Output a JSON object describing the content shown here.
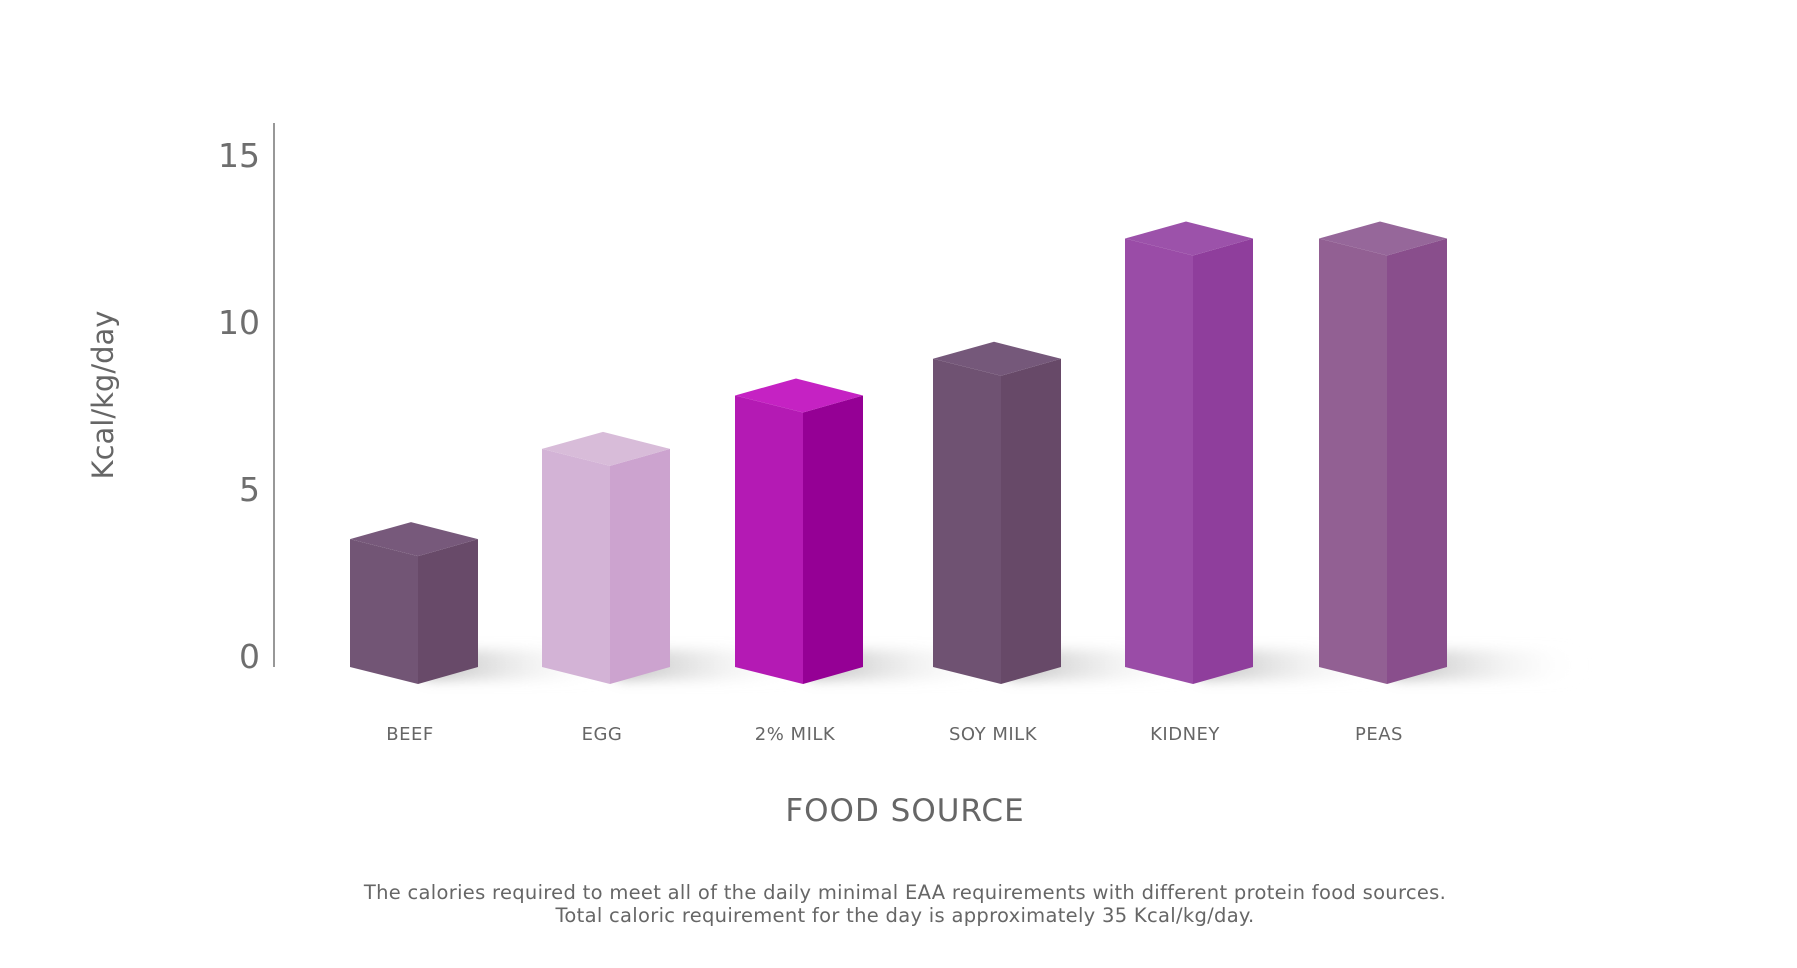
{
  "chart_data": {
    "type": "bar",
    "style": "3d-column",
    "title": "",
    "xlabel": "FOOD SOURCE",
    "ylabel": "Kcal/kg/day",
    "ylim": [
      0,
      15
    ],
    "yticks": [
      "0",
      "5",
      "10",
      "15"
    ],
    "grid": false,
    "categories": [
      "BEEF",
      "EGG",
      "2% MILK",
      "SOY MILK",
      "KIDNEY",
      "PEAS"
    ],
    "values": [
      3.5,
      6.2,
      7.8,
      8.9,
      12.5,
      12.5
    ],
    "colors": [
      {
        "front": "#725575",
        "side": "#684a69",
        "top": "#77597b"
      },
      {
        "front": "#d3b3d6",
        "side": "#cca3cf",
        "top": "#d8bcd9"
      },
      {
        "front": "#b41ab4",
        "side": "#950095",
        "top": "#c522c3"
      },
      {
        "front": "#6f5272",
        "side": "#674968",
        "top": "#75587a"
      },
      {
        "front": "#9a4ca7",
        "side": "#8f3e9c",
        "top": "#9c52aa"
      },
      {
        "front": "#926093",
        "side": "#894e8c",
        "top": "#96679a"
      }
    ]
  },
  "caption": {
    "line1": "The calories required to meet all of the daily minimal EAA requirements with different protein food sources.",
    "line2": "Total caloric requirement for the day is approximately 35 Kcal/kg/day."
  }
}
